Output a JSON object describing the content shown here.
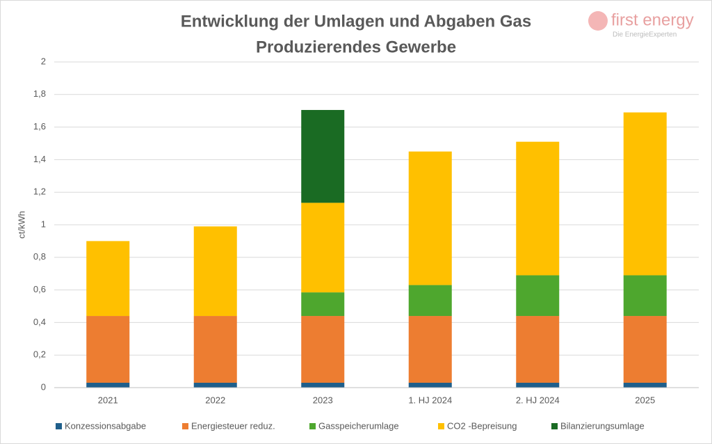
{
  "chart_data": {
    "type": "stacked-bar",
    "title": "Entwicklung der Umlagen und Abgaben Gas",
    "subtitle": "Produzierendes Gewerbe",
    "y_label": "ct/kWh",
    "logo": {
      "name": "first energy",
      "tagline": "Die EnergieExperten"
    },
    "categories": [
      "2021",
      "2022",
      "2023",
      "1. HJ 2024",
      "2. HJ 2024",
      "2025"
    ],
    "series": [
      {
        "name": "Konzessionsabgabe",
        "color": "#1f5f8b",
        "values": [
          0.03,
          0.03,
          0.03,
          0.03,
          0.03,
          0.03
        ]
      },
      {
        "name": "Energiesteuer reduz.",
        "color": "#ed7d31",
        "values": [
          0.41,
          0.41,
          0.41,
          0.41,
          0.41,
          0.41
        ]
      },
      {
        "name": "Gasspeicherumlage",
        "color": "#4ea72e",
        "values": [
          null,
          null,
          0.145,
          0.19,
          0.25,
          0.25
        ]
      },
      {
        "name": "CO2 -Bepreisung",
        "color": "#ffc000",
        "values": [
          0.46,
          0.55,
          0.55,
          0.82,
          0.82,
          1.0
        ]
      },
      {
        "name": "Bilanzierungsumlage",
        "color": "#1a6b23",
        "values": [
          null,
          null,
          0.57,
          null,
          null,
          null
        ]
      }
    ],
    "ylim": [
      0,
      2
    ],
    "yticks": [
      0,
      {
        "value": 0.2,
        "label": "0,2"
      },
      {
        "value": 0.4,
        "label": "0,4"
      },
      {
        "value": 0.6,
        "label": "0,6"
      },
      {
        "value": 0.8,
        "label": "0,8"
      },
      1,
      {
        "value": 1.2,
        "label": "1,2"
      },
      {
        "value": 1.4,
        "label": "1,4"
      },
      {
        "value": 1.6,
        "label": "1,6"
      },
      {
        "value": 1.8,
        "label": "1,8"
      },
      2
    ],
    "grid": true,
    "legend": "bottom"
  }
}
